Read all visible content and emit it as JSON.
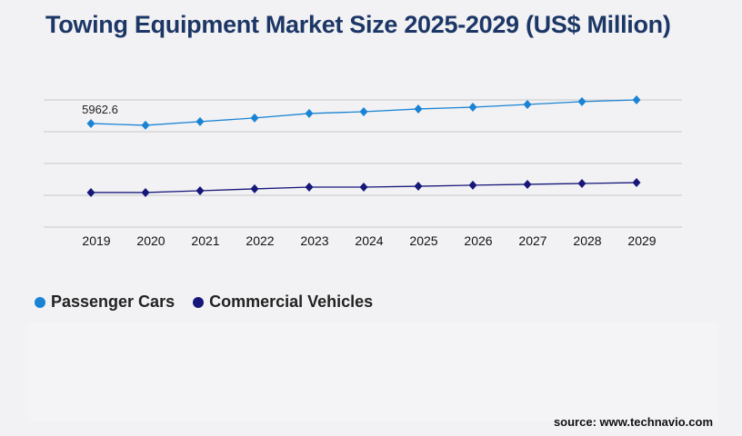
{
  "chart_data": {
    "type": "line",
    "title": "Towing Equipment Market Size 2025-2029 (US$ Million)",
    "categories": [
      "2019",
      "2020",
      "2021",
      "2022",
      "2023",
      "2024",
      "2025",
      "2026",
      "2027",
      "2028",
      "2029"
    ],
    "series": [
      {
        "name": "Passenger Cars",
        "color": "#1a83d4",
        "values": [
          5962.6,
          5860,
          6070,
          6280,
          6540,
          6640,
          6800,
          6900,
          7060,
          7220,
          7320
        ]
      },
      {
        "name": "Commercial Vehicles",
        "color": "#17177a",
        "values": [
          1990,
          1990,
          2090,
          2200,
          2300,
          2300,
          2350,
          2410,
          2460,
          2510,
          2560
        ]
      }
    ],
    "data_labels": [
      {
        "series": 0,
        "index": 0,
        "text": "5962.6"
      }
    ],
    "xlabel": "",
    "ylabel": "",
    "ylim": [
      0,
      7320
    ],
    "y_tick_labels_shown": false,
    "grid": true,
    "legend_position": "bottom-left"
  },
  "source": "source: www.technavio.com"
}
